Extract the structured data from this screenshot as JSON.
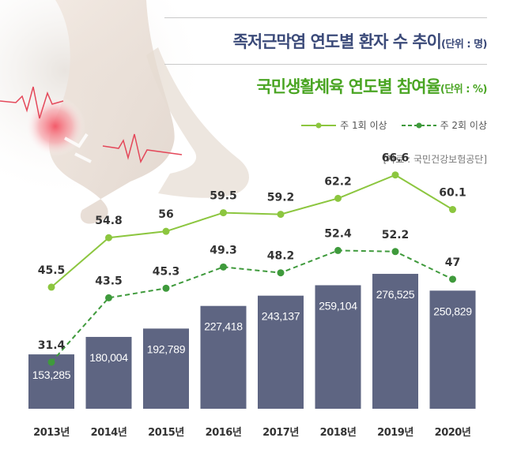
{
  "titles": {
    "main": "족저근막염 연도별 환자 수 추이",
    "main_unit": "(단위 : 명)",
    "sub": "국민생활체육 연도별 참여율",
    "sub_unit": "(단위 : %)"
  },
  "legend": {
    "weekly1": "주 1회 이상",
    "weekly2": "주 2회 이상"
  },
  "source": "[자료 : 국민건강보험공단]",
  "colors": {
    "bar": "#5e6582",
    "line1": "#8cc63f",
    "line2": "#3f9a3c",
    "title1": "#3b4a79",
    "title2": "#4aa523"
  },
  "chart_data": {
    "type": "bar",
    "categories": [
      "2013년",
      "2014년",
      "2015년",
      "2016년",
      "2017년",
      "2018년",
      "2019년",
      "2020년"
    ],
    "series": [
      {
        "name": "환자 수",
        "type": "bar",
        "values": [
          153285,
          180004,
          192789,
          227418,
          243137,
          259104,
          276525,
          250829
        ],
        "labels": [
          "153,285",
          "180,004",
          "192,789",
          "227,418",
          "243,137",
          "259,104",
          "276,525",
          "250,829"
        ]
      },
      {
        "name": "주 1회 이상",
        "type": "line",
        "values": [
          45.5,
          54.8,
          56,
          59.5,
          59.2,
          62.2,
          66.6,
          60.1
        ],
        "labels": [
          "45.5",
          "54.8",
          "56",
          "59.5",
          "59.2",
          "62.2",
          "66.6",
          "60.1"
        ]
      },
      {
        "name": "주 2회 이상",
        "type": "line",
        "values": [
          31.4,
          43.5,
          45.3,
          49.3,
          48.2,
          52.4,
          52.2,
          47
        ],
        "labels": [
          "31.4",
          "43.5",
          "45.3",
          "49.3",
          "48.2",
          "52.4",
          "52.2",
          "47"
        ]
      }
    ]
  }
}
